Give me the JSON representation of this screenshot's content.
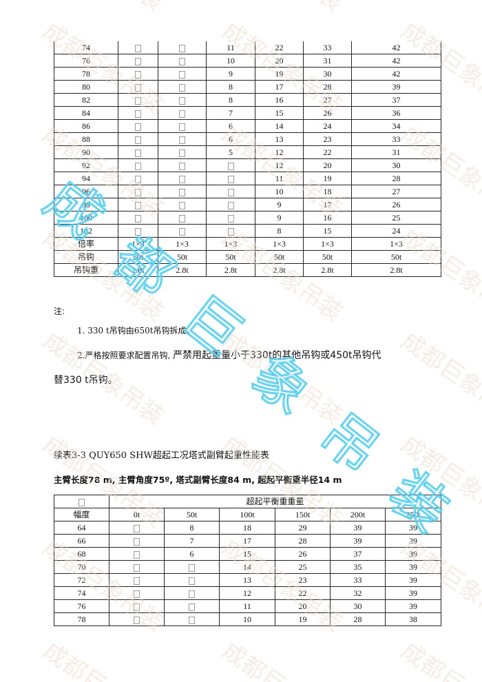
{
  "table1": {
    "rows": [
      [
        "74",
        "",
        "",
        "11",
        "22",
        "33",
        "42"
      ],
      [
        "76",
        "",
        "",
        "10",
        "20",
        "31",
        "42"
      ],
      [
        "78",
        "",
        "",
        "9",
        "19",
        "30",
        "42"
      ],
      [
        "80",
        "",
        "",
        "8",
        "17",
        "28",
        "39"
      ],
      [
        "82",
        "",
        "",
        "8",
        "16",
        "27",
        "37"
      ],
      [
        "84",
        "",
        "",
        "7",
        "15",
        "26",
        "36"
      ],
      [
        "86",
        "",
        "",
        "6",
        "14",
        "24",
        "34"
      ],
      [
        "88",
        "",
        "",
        "6",
        "13",
        "23",
        "33"
      ],
      [
        "90",
        "",
        "",
        "5",
        "12",
        "22",
        "31"
      ],
      [
        "92",
        "",
        "",
        "",
        "12",
        "20",
        "30"
      ],
      [
        "94",
        "",
        "",
        "",
        "11",
        "19",
        "28"
      ],
      [
        "96",
        "",
        "",
        "",
        "10",
        "18",
        "27"
      ],
      [
        "98",
        "",
        "",
        "",
        "9",
        "17",
        "26"
      ],
      [
        "100",
        "",
        "",
        "",
        "9",
        "16",
        "25"
      ],
      [
        "102",
        "",
        "",
        "",
        "8",
        "15",
        "24"
      ]
    ],
    "footer_rows": [
      [
        "倍率",
        "1×3",
        "1×3",
        "1×3",
        "1×3",
        "1×3",
        "1×3"
      ],
      [
        "吊钩",
        "50t",
        "50t",
        "50t",
        "50t",
        "50t",
        "50t"
      ],
      [
        "吊钩重",
        "2.8t",
        "2.8t",
        "2.8t",
        "2.8t",
        "2.8t",
        "2.8t"
      ]
    ]
  },
  "notes": {
    "heading": "注:",
    "note1": "1. 330 t吊钩由650t吊钩拆成。",
    "note2_a": "2.严格按照要求配置吊钩, ",
    "note2_b": "严禁用起重量小于330t的其他吊钩或450t吊钩代",
    "note2_c": "替330 t吊钩。"
  },
  "table2_title": "续表3-3 QUY650 SHW超起工况塔式副臂起重性能表",
  "table2_subtitle": "主臂长度78 m, 主臂角度75º, 塔式副臂长度84 m, 超起平衡重半径14 m",
  "table2": {
    "group_header": "超起平衡重重量",
    "radius_header": "幅度",
    "columns": [
      "0t",
      "50t",
      "100t",
      "150t",
      "200t",
      "250t"
    ],
    "rows": [
      [
        "64",
        "",
        "8",
        "18",
        "29",
        "39",
        "39"
      ],
      [
        "66",
        "",
        "7",
        "17",
        "28",
        "39",
        "39"
      ],
      [
        "68",
        "",
        "6",
        "15",
        "26",
        "37",
        "39"
      ],
      [
        "70",
        "",
        "",
        "14",
        "25",
        "35",
        "39"
      ],
      [
        "72",
        "",
        "",
        "13",
        "23",
        "33",
        "39"
      ],
      [
        "74",
        "",
        "",
        "12",
        "22",
        "32",
        "39"
      ],
      [
        "76",
        "",
        "",
        "11",
        "20",
        "30",
        "39"
      ],
      [
        "78",
        "",
        "",
        "10",
        "19",
        "28",
        "38"
      ]
    ]
  },
  "watermark": {
    "text": "成都巨象吊装",
    "pattern_color": "#e9dccb",
    "overlay_color": "#5fd0ee"
  }
}
